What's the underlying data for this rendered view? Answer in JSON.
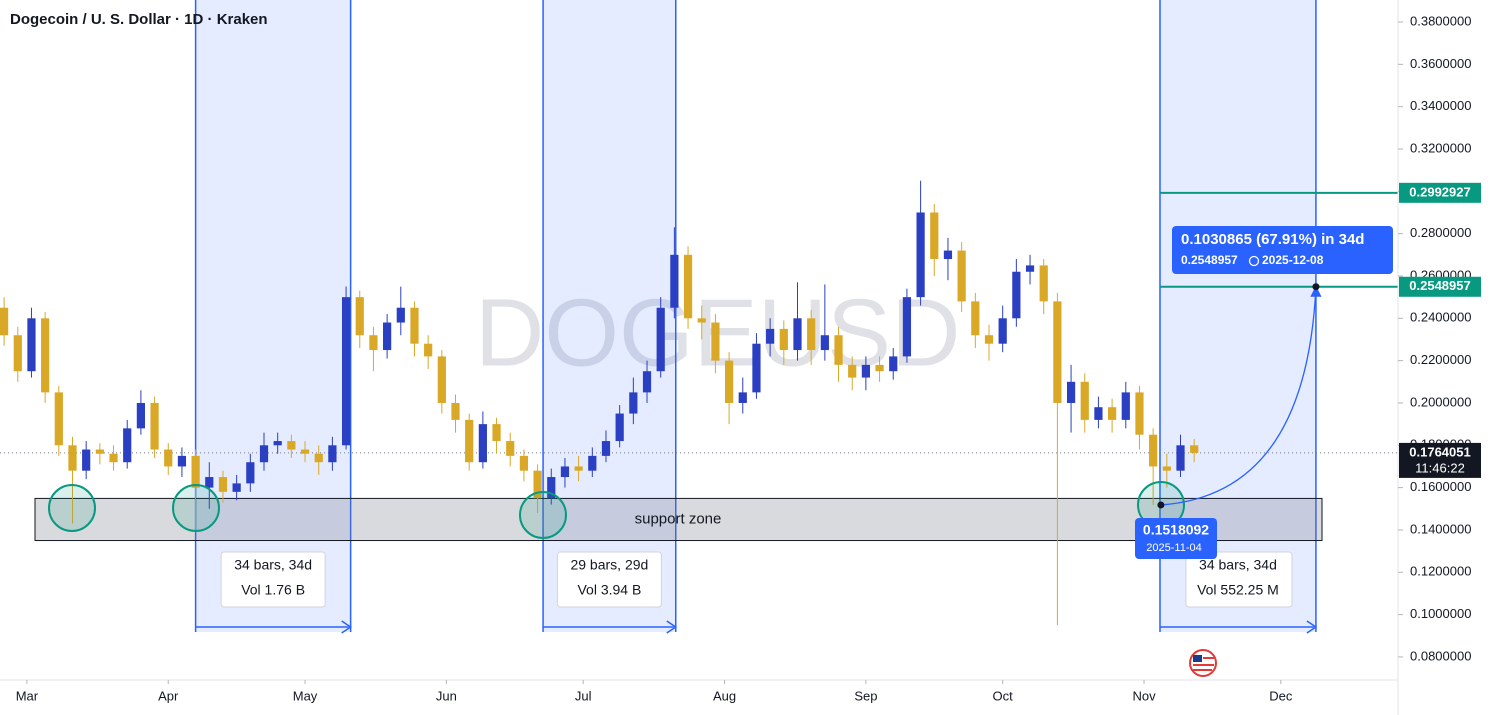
{
  "chart_data": {
    "type": "candlestick",
    "title": "Dogecoin / U. S. Dollar · 1D · Kraken",
    "watermark": "DOGEUSD",
    "x": [
      -5,
      -2,
      1,
      4,
      7,
      10,
      13,
      16,
      19,
      22,
      25,
      28,
      31,
      34,
      37,
      40,
      43,
      46,
      49,
      52,
      55,
      58,
      61,
      64,
      67,
      70,
      73,
      76,
      79,
      82,
      85,
      88,
      91,
      94,
      97,
      100,
      103,
      106,
      109,
      112,
      115,
      118,
      121,
      124,
      127,
      130,
      133,
      136,
      139,
      142,
      145,
      148,
      151,
      154,
      157,
      160,
      163,
      166,
      169,
      172,
      175,
      178,
      181,
      184,
      187,
      190,
      193,
      196,
      199,
      202,
      205,
      208,
      211,
      214,
      217,
      220,
      223,
      226,
      229,
      232,
      235,
      238,
      241,
      244,
      247,
      250,
      253,
      256
    ],
    "open": [
      0.245,
      0.232,
      0.215,
      0.24,
      0.205,
      0.18,
      0.168,
      0.178,
      0.176,
      0.172,
      0.188,
      0.2,
      0.178,
      0.17,
      0.175,
      0.16,
      0.165,
      0.158,
      0.162,
      0.172,
      0.18,
      0.182,
      0.178,
      0.176,
      0.172,
      0.18,
      0.25,
      0.232,
      0.225,
      0.238,
      0.245,
      0.228,
      0.222,
      0.2,
      0.192,
      0.172,
      0.19,
      0.182,
      0.175,
      0.168,
      0.155,
      0.165,
      0.17,
      0.168,
      0.175,
      0.182,
      0.195,
      0.205,
      0.215,
      0.245,
      0.27,
      0.24,
      0.238,
      0.22,
      0.2,
      0.205,
      0.228,
      0.235,
      0.225,
      0.24,
      0.225,
      0.232,
      0.218,
      0.212,
      0.218,
      0.215,
      0.222,
      0.25,
      0.29,
      0.268,
      0.272,
      0.248,
      0.232,
      0.228,
      0.24,
      0.262,
      0.265,
      0.248,
      0.2,
      0.21,
      0.192,
      0.198,
      0.192,
      0.205,
      0.185,
      0.17,
      0.168,
      0.18
    ],
    "high": [
      0.25,
      0.236,
      0.245,
      0.243,
      0.208,
      0.184,
      0.182,
      0.181,
      0.18,
      0.192,
      0.206,
      0.203,
      0.181,
      0.179,
      0.178,
      0.172,
      0.168,
      0.166,
      0.176,
      0.186,
      0.186,
      0.185,
      0.182,
      0.18,
      0.184,
      0.255,
      0.253,
      0.236,
      0.242,
      0.255,
      0.248,
      0.232,
      0.225,
      0.204,
      0.195,
      0.196,
      0.193,
      0.186,
      0.178,
      0.171,
      0.169,
      0.174,
      0.175,
      0.179,
      0.187,
      0.199,
      0.212,
      0.22,
      0.25,
      0.283,
      0.274,
      0.246,
      0.242,
      0.224,
      0.212,
      0.233,
      0.24,
      0.239,
      0.257,
      0.244,
      0.256,
      0.236,
      0.222,
      0.222,
      0.222,
      0.226,
      0.254,
      0.305,
      0.294,
      0.278,
      0.276,
      0.252,
      0.237,
      0.246,
      0.268,
      0.27,
      0.268,
      0.252,
      0.218,
      0.214,
      0.203,
      0.202,
      0.21,
      0.208,
      0.188,
      0.176,
      0.185,
      0.183
    ],
    "low": [
      0.227,
      0.21,
      0.212,
      0.2,
      0.175,
      0.143,
      0.164,
      0.171,
      0.168,
      0.169,
      0.185,
      0.174,
      0.166,
      0.165,
      0.14,
      0.15,
      0.153,
      0.154,
      0.158,
      0.168,
      0.176,
      0.174,
      0.172,
      0.166,
      0.168,
      0.178,
      0.226,
      0.215,
      0.221,
      0.232,
      0.222,
      0.216,
      0.195,
      0.186,
      0.168,
      0.169,
      0.176,
      0.17,
      0.163,
      0.148,
      0.152,
      0.16,
      0.163,
      0.165,
      0.172,
      0.179,
      0.19,
      0.2,
      0.212,
      0.24,
      0.235,
      0.23,
      0.214,
      0.19,
      0.195,
      0.202,
      0.222,
      0.218,
      0.22,
      0.218,
      0.22,
      0.21,
      0.206,
      0.206,
      0.21,
      0.211,
      0.219,
      0.246,
      0.26,
      0.258,
      0.243,
      0.226,
      0.22,
      0.224,
      0.236,
      0.256,
      0.242,
      0.095,
      0.186,
      0.186,
      0.188,
      0.186,
      0.188,
      0.178,
      0.1518,
      0.16,
      0.165,
      0.172
    ],
    "close": [
      0.232,
      0.215,
      0.24,
      0.205,
      0.18,
      0.168,
      0.178,
      0.176,
      0.172,
      0.188,
      0.2,
      0.178,
      0.17,
      0.175,
      0.16,
      0.165,
      0.158,
      0.162,
      0.172,
      0.18,
      0.182,
      0.178,
      0.176,
      0.172,
      0.18,
      0.25,
      0.232,
      0.225,
      0.238,
      0.245,
      0.228,
      0.222,
      0.2,
      0.192,
      0.172,
      0.19,
      0.182,
      0.175,
      0.168,
      0.155,
      0.165,
      0.17,
      0.168,
      0.175,
      0.182,
      0.195,
      0.205,
      0.215,
      0.245,
      0.27,
      0.24,
      0.238,
      0.22,
      0.2,
      0.205,
      0.228,
      0.235,
      0.225,
      0.24,
      0.225,
      0.232,
      0.218,
      0.212,
      0.218,
      0.215,
      0.222,
      0.25,
      0.29,
      0.268,
      0.272,
      0.248,
      0.232,
      0.228,
      0.24,
      0.262,
      0.265,
      0.248,
      0.2,
      0.21,
      0.192,
      0.198,
      0.192,
      0.205,
      0.185,
      0.17,
      0.168,
      0.18,
      0.1764
    ],
    "up_color": "#2b3fc2",
    "down_color": "#d9a826",
    "xlim": [
      -5.9,
      300.7
    ],
    "ylim": [
      0.0691,
      0.3904
    ],
    "xticks": [
      {
        "value": 0,
        "label": "Mar"
      },
      {
        "value": 31,
        "label": "Apr"
      },
      {
        "value": 61,
        "label": "May"
      },
      {
        "value": 92,
        "label": "Jun"
      },
      {
        "value": 122,
        "label": "Jul"
      },
      {
        "value": 153,
        "label": "Aug"
      },
      {
        "value": 184,
        "label": "Sep"
      },
      {
        "value": 214,
        "label": "Oct"
      },
      {
        "value": 245,
        "label": "Nov"
      },
      {
        "value": 275,
        "label": "Dec"
      }
    ],
    "yticks": [
      {
        "value": 0.08,
        "label": "0.0800000"
      },
      {
        "value": 0.1,
        "label": "0.1000000"
      },
      {
        "value": 0.12,
        "label": "0.1200000"
      },
      {
        "value": 0.14,
        "label": "0.1400000"
      },
      {
        "value": 0.16,
        "label": "0.1600000"
      },
      {
        "value": 0.18,
        "label": "0.1800000"
      },
      {
        "value": 0.2,
        "label": "0.2000000"
      },
      {
        "value": 0.22,
        "label": "0.2200000"
      },
      {
        "value": 0.24,
        "label": "0.2400000"
      },
      {
        "value": 0.26,
        "label": "0.2600000"
      },
      {
        "value": 0.28,
        "label": "0.2800000"
      },
      {
        "value": 0.3,
        "label": "0.3000000"
      },
      {
        "value": 0.32,
        "label": "0.3200000"
      },
      {
        "value": 0.34,
        "label": "0.3400000"
      },
      {
        "value": 0.36,
        "label": "0.3600000"
      },
      {
        "value": 0.38,
        "label": "0.3800000"
      }
    ],
    "last_price": 0.1764051,
    "countdown": "11:46:22",
    "levels": [
      0.2992927,
      0.2548957
    ],
    "level_color": "#089981",
    "ranges": [
      {
        "x": [
          37,
          71
        ],
        "bars": "34 bars, 34d",
        "vol": "Vol 1.76 B"
      },
      {
        "x": [
          113.2,
          142.3
        ],
        "bars": "29 bars, 29d",
        "vol": "Vol 3.94 B"
      },
      {
        "x": [
          248.5,
          282.7
        ],
        "bars": "34 bars, 34d",
        "vol": "Vol 552.25 M"
      }
    ],
    "support_zone": {
      "ylim": [
        0.135,
        0.1549
      ],
      "label": "support zone"
    },
    "projection": {
      "x": [
        248.7,
        282.7
      ],
      "y": [
        0.1518092,
        0.2548957
      ],
      "change": "0.1030865 (67.91%) in 34d",
      "start_date": "2025-11-04",
      "end_date": "2025-12-08"
    }
  }
}
